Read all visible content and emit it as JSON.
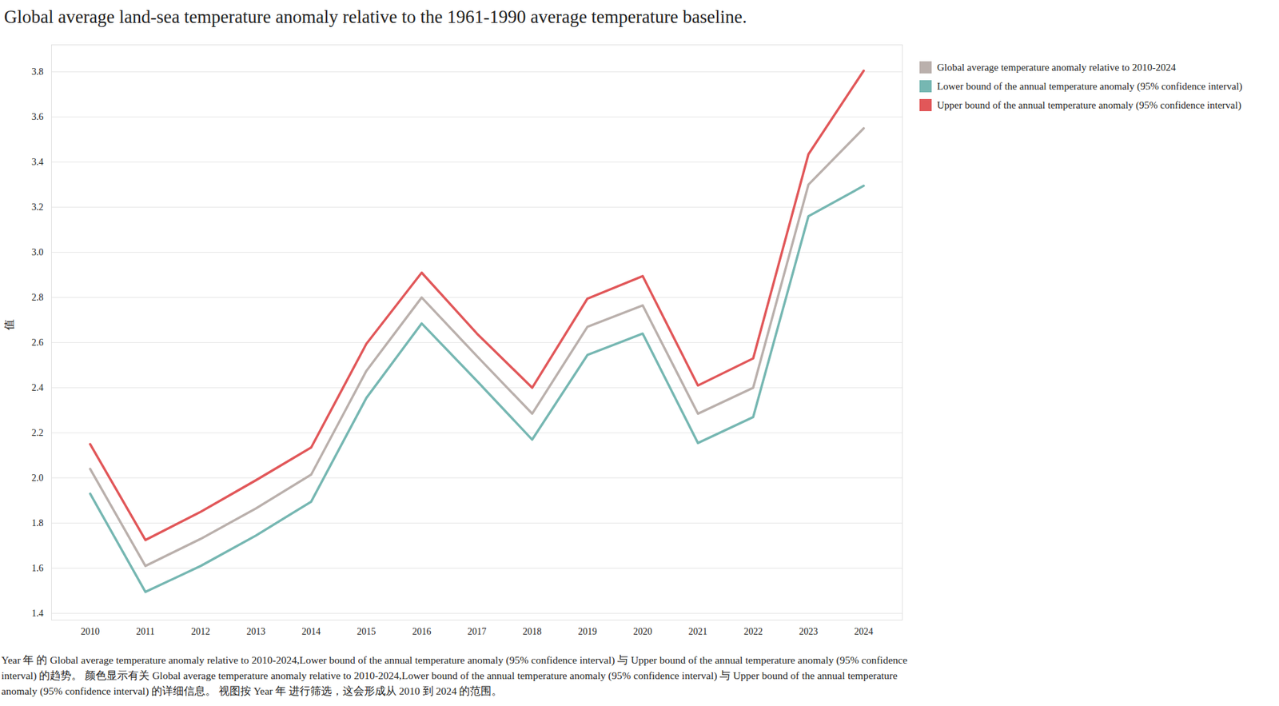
{
  "chart_data": {
    "type": "line",
    "title": "Global average land-sea temperature anomaly relative to the 1961-1990 average temperature baseline.",
    "y_label": "值",
    "caption": "Year 年 的 Global average temperature anomaly relative to 2010-2024,Lower bound of the annual temperature anomaly (95% confidence interval) 与 Upper bound of the annual temperature anomaly (95% confidence interval) 的趋势。 颜色显示有关 Global average temperature anomaly relative to 2010-2024,Lower bound of the annual temperature anomaly (95% confidence interval) 与 Upper bound of the annual temperature anomaly (95% confidence interval) 的详细信息。 视图按 Year 年 进行筛选，这会形成从 2010 到 2024 的范围。",
    "x": [
      2010,
      2011,
      2012,
      2013,
      2014,
      2015,
      2016,
      2017,
      2018,
      2019,
      2020,
      2021,
      2022,
      2023,
      2024
    ],
    "series": [
      {
        "name": "Global average temperature anomaly relative to 2010-2024",
        "color": "#bab0ac",
        "values": [
          2.04,
          1.61,
          1.73,
          1.865,
          2.015,
          2.475,
          2.8,
          2.54,
          2.285,
          2.67,
          2.765,
          2.285,
          2.4,
          3.3,
          3.55
        ]
      },
      {
        "name": "Lower bound of the annual temperature anomaly (95% confidence interval)",
        "color": "#76b7b2",
        "values": [
          1.93,
          1.495,
          1.61,
          1.745,
          1.895,
          2.355,
          2.685,
          2.43,
          2.17,
          2.545,
          2.64,
          2.155,
          2.27,
          3.16,
          3.295
        ]
      },
      {
        "name": "Upper bound of the annual temperature anomaly (95% confidence interval)",
        "color": "#e15759",
        "values": [
          2.15,
          1.725,
          1.85,
          1.99,
          2.135,
          2.595,
          2.91,
          2.64,
          2.4,
          2.795,
          2.895,
          2.41,
          2.53,
          3.435,
          3.805
        ]
      }
    ],
    "xlim": [
      2009.3,
      2024.7
    ],
    "xticks": [
      2010,
      2011,
      2012,
      2013,
      2014,
      2015,
      2016,
      2017,
      2018,
      2019,
      2020,
      2021,
      2022,
      2023,
      2024
    ],
    "ylim": [
      1.37,
      3.92
    ],
    "yticks": [
      1.4,
      1.6,
      1.8,
      {
        "value": 2,
        "label": "2.0"
      },
      2.2,
      2.4,
      2.6,
      2.8,
      {
        "value": 3,
        "label": "3.0"
      },
      3.2,
      3.4,
      3.6,
      3.8
    ],
    "grid": true,
    "legend": "top-right"
  }
}
